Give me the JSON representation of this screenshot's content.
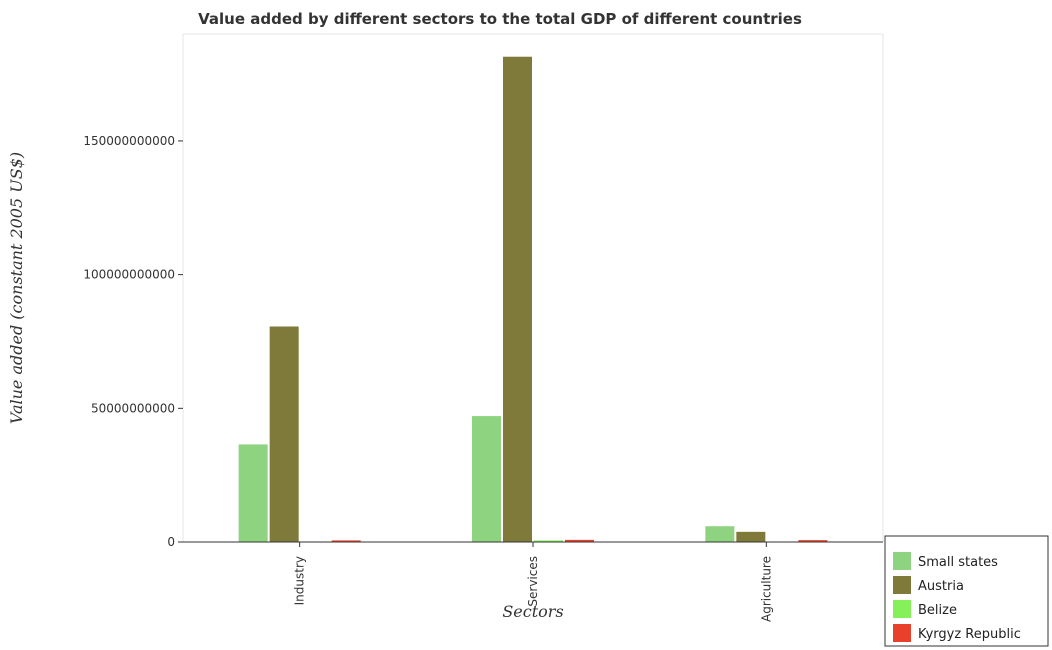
{
  "chart_data": {
    "type": "bar",
    "title": "Value added by different sectors to the total GDP of different countries",
    "xlabel": "Sectors",
    "ylabel": "Value added (constant 2005 US$)",
    "categories": [
      "Industry",
      "Services",
      "Agriculture"
    ],
    "ylim": [
      0,
      190000000000
    ],
    "yticks": [
      {
        "value": 0,
        "label": "0"
      },
      {
        "value": 50000000000,
        "label": "50000000000"
      },
      {
        "value": 100000000000,
        "label": "100000000000"
      },
      {
        "value": 150000000000,
        "label": "150000000000"
      }
    ],
    "series": [
      {
        "name": "Small states",
        "color": "#8ed37f",
        "values": [
          36500000000,
          47100000000,
          5900000000
        ]
      },
      {
        "name": "Austria",
        "color": "#7f7a3a",
        "values": [
          80600000000,
          181500000000,
          3800000000
        ]
      },
      {
        "name": "Belize",
        "color": "#86f05a",
        "values": [
          200000000,
          600000000,
          150000000
        ]
      },
      {
        "name": "Kyrgyz Republic",
        "color": "#e8402a",
        "values": [
          600000000,
          800000000,
          700000000
        ]
      }
    ],
    "legend_position": "bottom-right",
    "grid": false
  }
}
